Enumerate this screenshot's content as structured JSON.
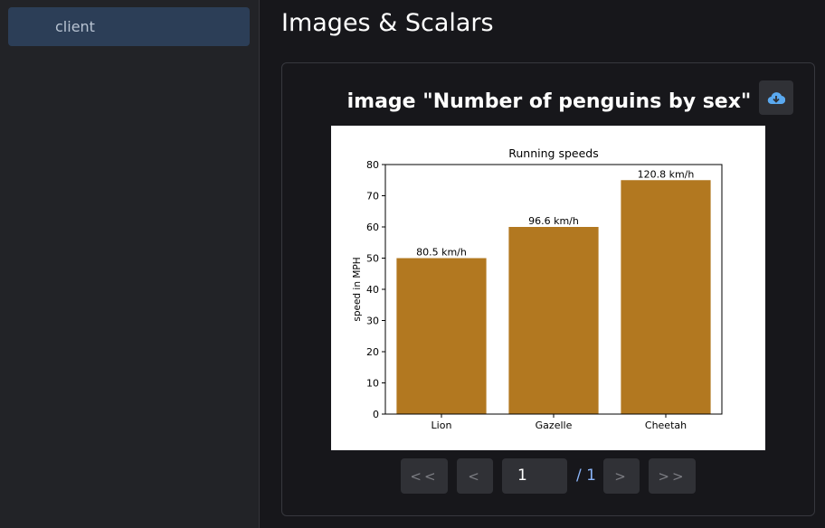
{
  "sidebar": {
    "items": [
      {
        "label": "client"
      }
    ]
  },
  "header": {
    "title": "Images & Scalars"
  },
  "card": {
    "title": "image \"Number of penguins by sex\"",
    "download_icon": "cloud-download-icon"
  },
  "pagination": {
    "first": "<<",
    "prev": "<",
    "page": "1",
    "total": "/ 1",
    "next": ">",
    "last": ">>"
  },
  "chart_data": {
    "type": "bar",
    "title": "Running speeds",
    "xlabel": "",
    "ylabel": "speed in MPH",
    "categories": [
      "Lion",
      "Gazelle",
      "Cheetah"
    ],
    "values": [
      50,
      60,
      75
    ],
    "data_labels": [
      "80.5 km/h",
      "96.6 km/h",
      "120.8 km/h"
    ],
    "ylim": [
      0,
      80
    ],
    "yticks": [
      0,
      10,
      20,
      30,
      40,
      50,
      60,
      70,
      80
    ],
    "grid": false,
    "color": "#b27820"
  }
}
